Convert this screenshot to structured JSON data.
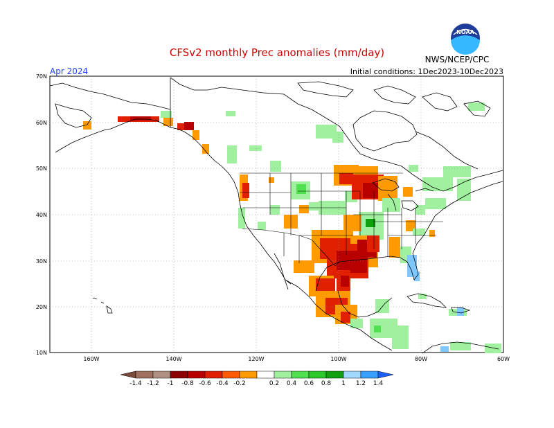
{
  "header": {
    "title": "CFSv2 monthly Prec anomalies (mm/day)",
    "month": "Apr 2024",
    "init": "Initial conditions: 1Dec2023-10Dec2023",
    "org": "NWS/NCEP/CPC",
    "logo_text": "NOAA"
  },
  "map": {
    "lat_labels": [
      "70N",
      "60N",
      "50N",
      "40N",
      "30N",
      "20N",
      "10N"
    ],
    "lon_labels": [
      "160W",
      "140W",
      "120W",
      "100W",
      "80W",
      "60W"
    ],
    "land_color": "#ffffff",
    "border_color": "#000000",
    "grid": "dotted"
  },
  "colorbar": {
    "labels": [
      "-1.4",
      "-1.2",
      "-1",
      "-0.8",
      "-0.6",
      "-0.4",
      "-0.2",
      "0.2",
      "0.4",
      "0.6",
      "0.8",
      "1",
      "1.2",
      "1.4"
    ],
    "colors": [
      "#7a4a3a",
      "#a0705e",
      "#b09080",
      "#8b0000",
      "#b80000",
      "#e02000",
      "#ff5a00",
      "#ff9a00",
      "#ffffff",
      "#a0f0a0",
      "#50e050",
      "#2cc82c",
      "#10a010",
      "#a0d8ff",
      "#3aa0ff",
      "#1e60ff"
    ]
  },
  "anomalies": {
    "dry_strong": "#b80000",
    "dry": "#e02000",
    "dry_mild": "#ff9a00",
    "wet_mild": "#a0f0a0",
    "wet": "#50e050",
    "wet_strong": "#10a010",
    "wet_blue": "#7ec8ff"
  }
}
